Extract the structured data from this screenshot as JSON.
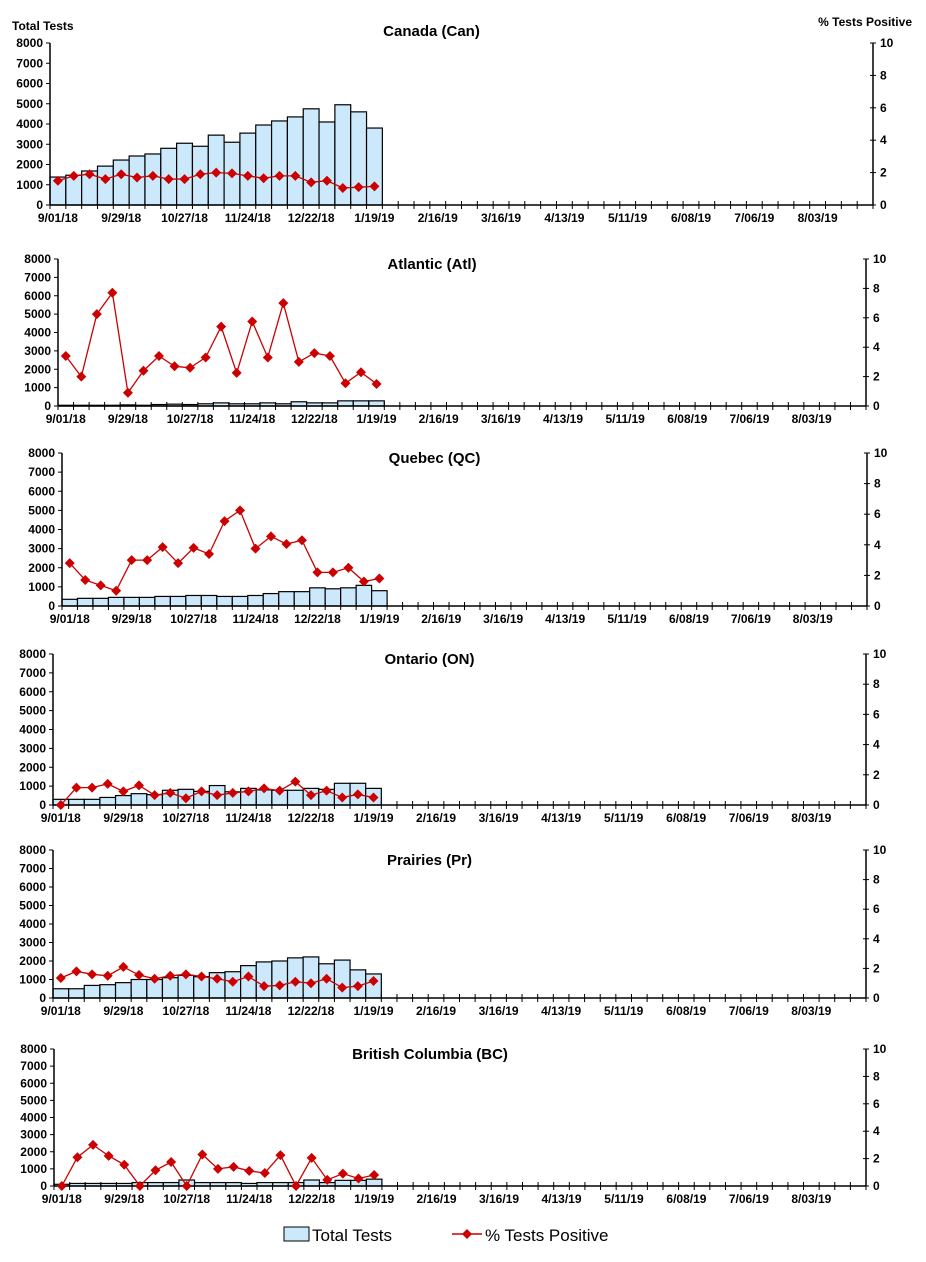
{
  "left_axis_title": "Total Tests",
  "right_axis_title": "% Tests Positive",
  "legend": {
    "bars": "Total Tests",
    "line": "% Tests Positive"
  },
  "colors": {
    "bar_fill": "#cce9fb",
    "bar_stroke": "#000000",
    "line": "#cc0000"
  },
  "chart_data": [
    {
      "type": "bar+line",
      "title": "Canada (Can)",
      "ylim": [
        0,
        8000
      ],
      "y2lim": [
        0,
        10
      ],
      "yticks": [
        0,
        1000,
        2000,
        3000,
        4000,
        5000,
        6000,
        7000,
        8000
      ],
      "y2ticks": [
        0,
        2,
        4,
        6,
        8,
        10
      ],
      "x_tick_labels": [
        "9/01/18",
        "9/29/18",
        "10/27/18",
        "11/24/18",
        "12/22/18",
        "1/19/19",
        "2/16/19",
        "3/16/19",
        "4/13/19",
        "5/11/19",
        "6/08/19",
        "7/06/19",
        "8/03/19"
      ],
      "total_tests": [
        1380,
        1470,
        1680,
        1920,
        2220,
        2420,
        2520,
        2800,
        3050,
        2900,
        3450,
        3100,
        3550,
        3950,
        4150,
        4350,
        4750,
        4100,
        4950,
        4600,
        3800
      ],
      "pct_positive": [
        1.5,
        1.8,
        1.9,
        1.6,
        1.9,
        1.7,
        1.8,
        1.6,
        1.6,
        1.9,
        2.0,
        1.95,
        1.8,
        1.65,
        1.8,
        1.8,
        1.4,
        1.5,
        1.05,
        1.1,
        1.15
      ]
    },
    {
      "type": "bar+line",
      "title": "Atlantic (Atl)",
      "ylim": [
        0,
        8000
      ],
      "y2lim": [
        0,
        10
      ],
      "yticks": [
        0,
        1000,
        2000,
        3000,
        4000,
        5000,
        6000,
        7000,
        8000
      ],
      "y2ticks": [
        0,
        2,
        4,
        6,
        8,
        10
      ],
      "x_tick_labels": [
        "9/01/18",
        "9/29/18",
        "10/27/18",
        "11/24/18",
        "12/22/18",
        "1/19/19",
        "2/16/19",
        "3/16/19",
        "4/13/19",
        "5/11/19",
        "6/08/19",
        "7/06/19",
        "8/03/19"
      ],
      "total_tests": [
        40,
        40,
        40,
        40,
        60,
        40,
        80,
        100,
        80,
        120,
        170,
        120,
        120,
        170,
        120,
        230,
        170,
        170,
        280,
        280,
        280
      ],
      "pct_positive": [
        3.4,
        2.0,
        6.25,
        7.7,
        0.9,
        2.4,
        3.4,
        2.7,
        2.6,
        3.3,
        5.4,
        2.25,
        5.75,
        3.3,
        7.0,
        3.0,
        3.6,
        3.4,
        1.55,
        2.3,
        1.5
      ]
    },
    {
      "type": "bar+line",
      "title": "Quebec (QC)",
      "ylim": [
        0,
        8000
      ],
      "y2lim": [
        0,
        10
      ],
      "yticks": [
        0,
        1000,
        2000,
        3000,
        4000,
        5000,
        6000,
        7000,
        8000
      ],
      "y2ticks": [
        0,
        2,
        4,
        6,
        8,
        10
      ],
      "x_tick_labels": [
        "9/01/18",
        "9/29/18",
        "10/27/18",
        "11/24/18",
        "12/22/18",
        "1/19/19",
        "2/16/19",
        "3/16/19",
        "4/13/19",
        "5/11/19",
        "6/08/19",
        "7/06/19",
        "8/03/19"
      ],
      "total_tests": [
        350,
        400,
        400,
        450,
        450,
        450,
        500,
        500,
        550,
        550,
        500,
        500,
        550,
        650,
        750,
        750,
        950,
        900,
        950,
        1080,
        800
      ],
      "pct_positive": [
        2.8,
        1.7,
        1.35,
        1.0,
        3.0,
        3.0,
        3.85,
        2.8,
        3.8,
        3.4,
        5.55,
        6.25,
        3.75,
        4.55,
        4.05,
        4.3,
        2.2,
        2.2,
        2.5,
        1.6,
        1.8
      ]
    },
    {
      "type": "bar+line",
      "title": "Ontario (ON)",
      "ylim": [
        0,
        8000
      ],
      "y2lim": [
        0,
        10
      ],
      "yticks": [
        0,
        1000,
        2000,
        3000,
        4000,
        5000,
        6000,
        7000,
        8000
      ],
      "y2ticks": [
        0,
        2,
        4,
        6,
        8,
        10
      ],
      "x_tick_labels": [
        "9/01/18",
        "9/29/18",
        "10/27/18",
        "11/24/18",
        "12/22/18",
        "1/19/19",
        "2/16/19",
        "3/16/19",
        "4/13/19",
        "5/11/19",
        "6/08/19",
        "7/06/19",
        "8/03/19"
      ],
      "total_tests": [
        300,
        300,
        300,
        400,
        500,
        600,
        550,
        780,
        830,
        720,
        1030,
        700,
        880,
        800,
        780,
        780,
        880,
        830,
        1150,
        1150,
        880
      ],
      "pct_positive": [
        0,
        1.15,
        1.15,
        1.4,
        0.9,
        1.3,
        0.65,
        0.8,
        0.45,
        0.9,
        0.65,
        0.8,
        0.9,
        1.1,
        0.95,
        1.55,
        0.65,
        0.95,
        0.5,
        0.7,
        0.5
      ]
    },
    {
      "type": "bar+line",
      "title": "Prairies (Pr)",
      "ylim": [
        0,
        8000
      ],
      "y2lim": [
        0,
        10
      ],
      "yticks": [
        0,
        1000,
        2000,
        3000,
        4000,
        5000,
        6000,
        7000,
        8000
      ],
      "y2ticks": [
        0,
        2,
        4,
        6,
        8,
        10
      ],
      "x_tick_labels": [
        "9/01/18",
        "9/29/18",
        "10/27/18",
        "11/24/18",
        "12/22/18",
        "1/19/19",
        "2/16/19",
        "3/16/19",
        "4/13/19",
        "5/11/19",
        "6/08/19",
        "7/06/19",
        "8/03/19"
      ],
      "total_tests": [
        500,
        500,
        680,
        720,
        830,
        1000,
        1000,
        1100,
        1220,
        1150,
        1370,
        1420,
        1750,
        1950,
        2000,
        2170,
        2220,
        1850,
        2050,
        1520,
        1300
      ],
      "pct_positive": [
        1.35,
        1.8,
        1.6,
        1.5,
        2.1,
        1.55,
        1.3,
        1.5,
        1.6,
        1.45,
        1.3,
        1.1,
        1.45,
        0.8,
        0.85,
        1.1,
        1.0,
        1.3,
        0.7,
        0.8,
        1.15
      ]
    },
    {
      "type": "bar+line",
      "title": "British Columbia (BC)",
      "ylim": [
        0,
        8000
      ],
      "y2lim": [
        0,
        10
      ],
      "yticks": [
        0,
        1000,
        2000,
        3000,
        4000,
        5000,
        6000,
        7000,
        8000
      ],
      "y2ticks": [
        0,
        2,
        4,
        6,
        8,
        10
      ],
      "x_tick_labels": [
        "9/01/18",
        "9/29/18",
        "10/27/18",
        "11/24/18",
        "12/22/18",
        "1/19/19",
        "2/16/19",
        "3/16/19",
        "4/13/19",
        "5/11/19",
        "6/08/19",
        "7/06/19",
        "8/03/19"
      ],
      "total_tests": [
        100,
        150,
        150,
        150,
        150,
        200,
        200,
        200,
        350,
        200,
        200,
        200,
        150,
        200,
        200,
        200,
        350,
        200,
        330,
        330,
        400
      ],
      "pct_positive": [
        0,
        2.1,
        3.0,
        2.2,
        1.55,
        0,
        1.15,
        1.75,
        0,
        2.3,
        1.25,
        1.4,
        1.1,
        0.95,
        2.25,
        0,
        2.05,
        0.45,
        0.9,
        0.55,
        0.8
      ]
    }
  ]
}
